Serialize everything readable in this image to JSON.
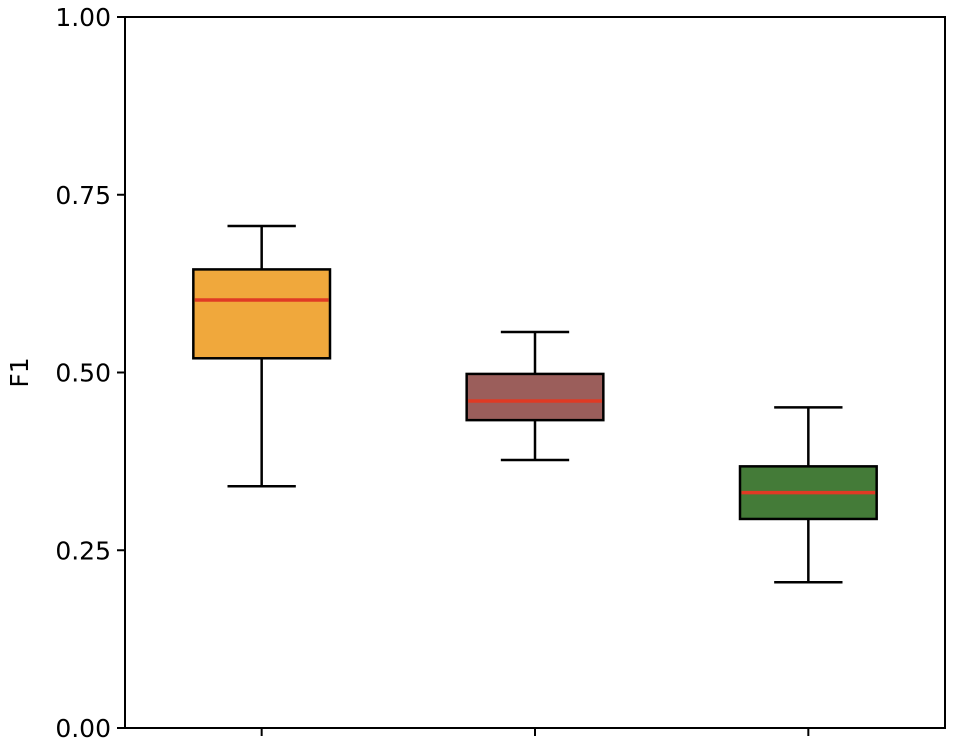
{
  "chart_data": {
    "type": "box",
    "title": "",
    "xlabel": "",
    "ylabel": "F1",
    "ylim": [
      0,
      1
    ],
    "yticks": [
      {
        "value": 0.0,
        "label": "0.00"
      },
      {
        "value": 0.25,
        "label": "0.25"
      },
      {
        "value": 0.5,
        "label": "0.50"
      },
      {
        "value": 0.75,
        "label": "0.75"
      },
      {
        "value": 1.0,
        "label": "1.00"
      }
    ],
    "categories": [
      "",
      "",
      ""
    ],
    "grid": false,
    "boxes": [
      {
        "whislo": 0.34,
        "q1": 0.52,
        "med": 0.602,
        "q3": 0.645,
        "whishi": 0.706,
        "color": "#F0A83C"
      },
      {
        "whislo": 0.377,
        "q1": 0.433,
        "med": 0.46,
        "q3": 0.498,
        "whishi": 0.557,
        "color": "#9B5E5B"
      },
      {
        "whislo": 0.205,
        "q1": 0.294,
        "med": 0.331,
        "q3": 0.368,
        "whishi": 0.451,
        "color": "#447B38"
      }
    ],
    "median_color": "#E03A24",
    "edge_color": "#000000"
  }
}
